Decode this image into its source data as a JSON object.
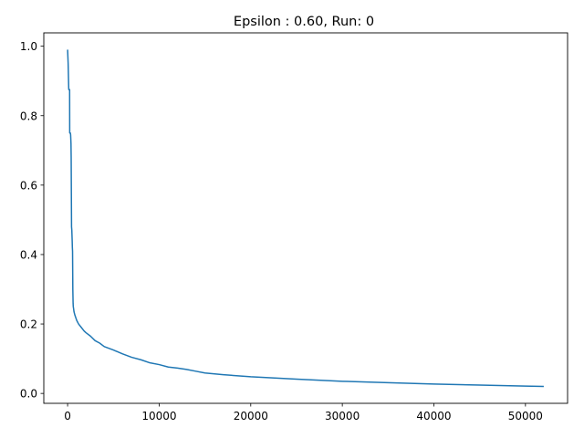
{
  "chart_data": {
    "type": "line",
    "title": "Epsilon : 0.60, Run: 0",
    "xlabel": "",
    "ylabel": "",
    "xlim": [
      -2600,
      54600
    ],
    "ylim": [
      -0.0285,
      1.0385
    ],
    "grid": false,
    "x_ticks": [
      0,
      10000,
      20000,
      30000,
      40000,
      50000
    ],
    "x_tick_labels": [
      "0",
      "10000",
      "20000",
      "30000",
      "40000",
      "50000"
    ],
    "y_ticks": [
      0.0,
      0.2,
      0.4,
      0.6,
      0.8,
      1.0
    ],
    "y_tick_labels": [
      "0.0",
      "0.2",
      "0.4",
      "0.6",
      "0.8",
      "1.0"
    ],
    "series": [
      {
        "color": "#1f77b4",
        "x": [
          1,
          60,
          120,
          130,
          220,
          230,
          300,
          330,
          370,
          390,
          430,
          460,
          500,
          520,
          540,
          570,
          600,
          620,
          650,
          700,
          800,
          1000,
          1200,
          1500,
          1800,
          2000,
          2500,
          3000,
          3500,
          4000,
          5000,
          6000,
          7000,
          8000,
          9000,
          10000,
          11000,
          12000,
          13000,
          14000,
          15000,
          17000,
          20000,
          25000,
          30000,
          35000,
          40000,
          45000,
          50000,
          52000
        ],
        "y": [
          0.99,
          0.95,
          0.88,
          0.875,
          0.875,
          0.75,
          0.75,
          0.745,
          0.72,
          0.68,
          0.48,
          0.47,
          0.44,
          0.42,
          0.41,
          0.3,
          0.26,
          0.25,
          0.245,
          0.235,
          0.225,
          0.21,
          0.2,
          0.19,
          0.18,
          0.175,
          0.165,
          0.152,
          0.145,
          0.135,
          0.125,
          0.114,
          0.104,
          0.097,
          0.088,
          0.083,
          0.076,
          0.073,
          0.069,
          0.064,
          0.059,
          0.054,
          0.048,
          0.041,
          0.035,
          0.031,
          0.027,
          0.024,
          0.021,
          0.02
        ]
      }
    ]
  }
}
